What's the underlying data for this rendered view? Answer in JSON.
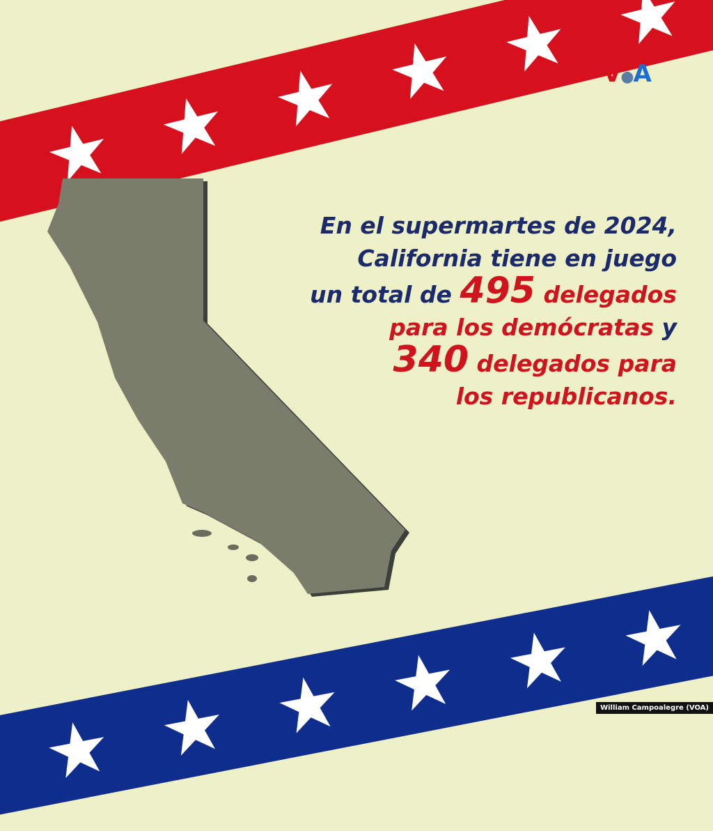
{
  "colors": {
    "background": "#eef0c8",
    "red": "#d6101c",
    "blue": "#0f2d8c",
    "navy_text": "#1b2a6b",
    "map_fill": "#7a7d6c"
  },
  "logo": {
    "text": "VOA"
  },
  "headline": {
    "line1": "En el supermartes de 2024,",
    "line2": "California tiene en juego",
    "line3_pre": "un total de ",
    "democrat_count": "495",
    "line3_post": " delegados",
    "line4_red": "para los demócratas",
    "line4_post": " y",
    "republican_count": "340",
    "line5_post": " delegados para",
    "line6": "los republicanos."
  },
  "credit": "William Campoalegre (VOA)"
}
